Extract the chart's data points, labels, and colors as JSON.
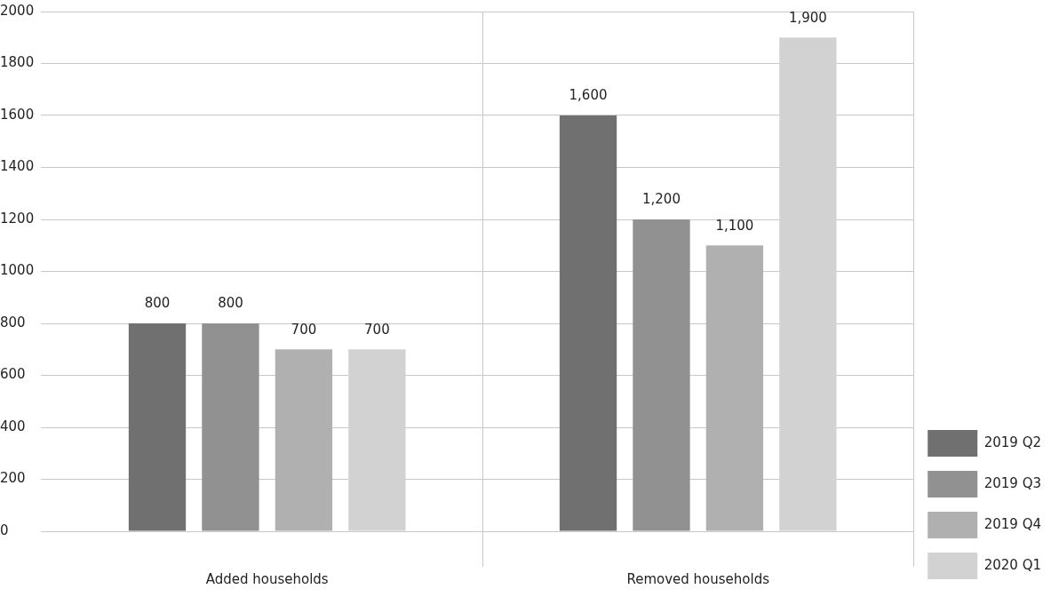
{
  "chart_data": {
    "type": "bar",
    "categories": [
      "Added households",
      "Removed households"
    ],
    "series": [
      {
        "name": "2019 Q2",
        "color": "#707070",
        "values": [
          800,
          1600
        ],
        "value_labels": [
          "800",
          "1,600"
        ]
      },
      {
        "name": "2019 Q3",
        "color": "#919191",
        "values": [
          800,
          1200
        ],
        "value_labels": [
          "800",
          "1,200"
        ]
      },
      {
        "name": "2019 Q4",
        "color": "#b0b0b0",
        "values": [
          700,
          1100
        ],
        "value_labels": [
          "700",
          "1,100"
        ]
      },
      {
        "name": "2020 Q1",
        "color": "#d2d2d2",
        "values": [
          700,
          1900
        ],
        "value_labels": [
          "700",
          "1,900"
        ]
      }
    ],
    "ylim": [
      0,
      2000
    ],
    "yticks": [
      0,
      200,
      400,
      600,
      800,
      1000,
      1200,
      1400,
      1600,
      1800,
      2000
    ],
    "grid": true,
    "legend": "right"
  }
}
